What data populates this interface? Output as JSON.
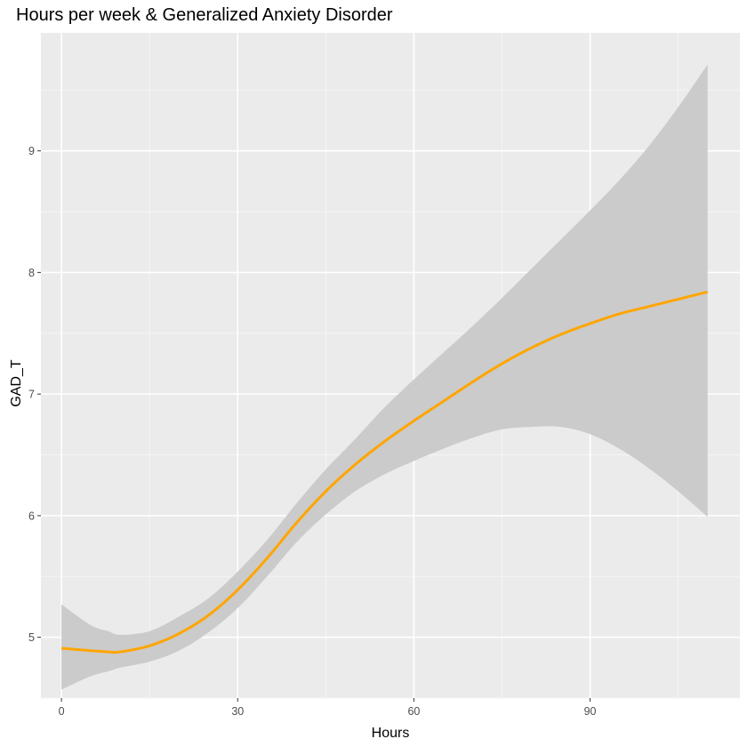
{
  "chart_data": {
    "type": "line",
    "title": "Hours per week & Generalized Anxiety Disorder",
    "xlabel": "Hours",
    "ylabel": "GAD_T",
    "xlim": [
      -3.5,
      115.5
    ],
    "ylim": [
      4.5,
      9.97
    ],
    "x_ticks": [
      0,
      30,
      60,
      90
    ],
    "x_tick_labels": [
      "0",
      "30",
      "60",
      "90"
    ],
    "y_ticks": [
      5,
      6,
      7,
      8,
      9
    ],
    "y_tick_labels": [
      "5",
      "6",
      "7",
      "8",
      "9"
    ],
    "grid": true,
    "legend": "none",
    "series": [
      {
        "style": "smooth line with confidence band",
        "color": "#FFA500",
        "band_color": "#CBCBCB",
        "x": [
          0,
          5,
          8,
          10,
          15,
          20,
          25,
          30,
          35,
          40,
          45,
          50,
          55,
          60,
          65,
          70,
          75,
          80,
          85,
          90,
          95,
          100,
          105,
          110
        ],
        "y": [
          4.91,
          4.89,
          4.88,
          4.88,
          4.93,
          5.03,
          5.18,
          5.39,
          5.65,
          5.94,
          6.2,
          6.42,
          6.61,
          6.78,
          6.94,
          7.1,
          7.25,
          7.38,
          7.49,
          7.58,
          7.66,
          7.72,
          7.78,
          7.84
        ],
        "ymin": [
          4.57,
          4.68,
          4.72,
          4.75,
          4.8,
          4.89,
          5.04,
          5.24,
          5.5,
          5.78,
          6.01,
          6.2,
          6.34,
          6.45,
          6.55,
          6.64,
          6.71,
          6.73,
          6.73,
          6.67,
          6.55,
          6.39,
          6.2,
          5.99
        ],
        "ymax": [
          5.27,
          5.1,
          5.05,
          5.02,
          5.05,
          5.17,
          5.32,
          5.54,
          5.8,
          6.1,
          6.38,
          6.63,
          6.89,
          7.12,
          7.34,
          7.56,
          7.79,
          8.03,
          8.27,
          8.51,
          8.76,
          9.04,
          9.36,
          9.71
        ]
      }
    ]
  }
}
